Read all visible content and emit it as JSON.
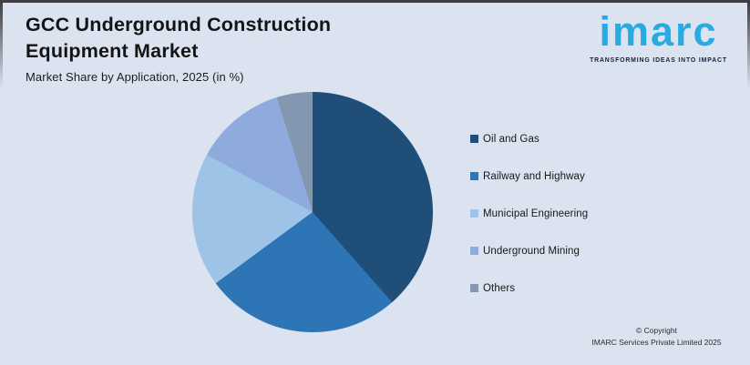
{
  "header": {
    "title_line1": "GCC Underground Construction",
    "title_line2": "Equipment Market",
    "subtitle": "Market Share by Application, 2025 (in %)"
  },
  "logo": {
    "wordmark": "imarc",
    "tagline": "TRANSFORMING IDEAS INTO IMPACT",
    "brand_color": "#29abe2",
    "tagline_color": "#10243c"
  },
  "chart_data": {
    "type": "pie",
    "title": "GCC Underground Construction Equipment Market",
    "subtitle": "Market Share by Application, 2025 (in %)",
    "start_angle_deg": 0,
    "direction": "clockwise",
    "legend_position": "right",
    "data_labels_shown": false,
    "slices": [
      {
        "label": "Oil and Gas",
        "value": 38.5,
        "color": "#1f4e79"
      },
      {
        "label": "Railway and Highway",
        "value": 26.4,
        "color": "#2e75b6"
      },
      {
        "label": "Municipal Engineering",
        "value": 18.0,
        "color": "#9dc3e6"
      },
      {
        "label": "Underground Mining",
        "value": 12.3,
        "color": "#8faadc"
      },
      {
        "label": "Others",
        "value": 4.8,
        "color": "#8497b0"
      }
    ]
  },
  "footer": {
    "copyright_line1": "© Copyright",
    "copyright_line2": "IMARC Services Private Limited 2025"
  },
  "colors": {
    "background": "#dbe3f1"
  }
}
